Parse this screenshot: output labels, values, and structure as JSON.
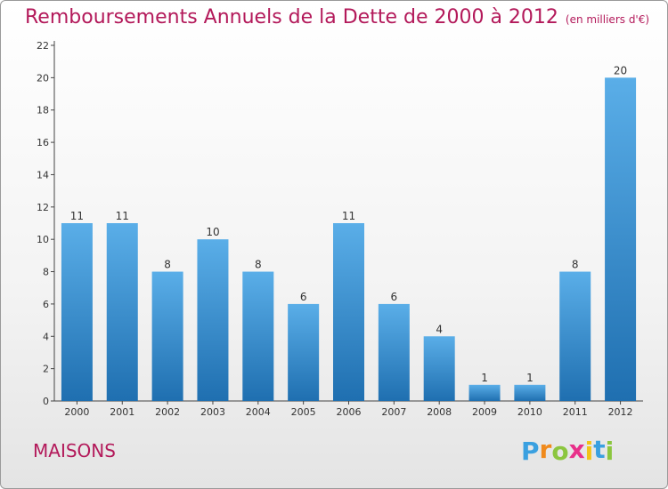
{
  "page": {
    "title": "Remboursements Annuels de la Dette de 2000 à 2012",
    "unit": "(en milliers d'€)",
    "location": "MAISONS",
    "logo": {
      "letters": [
        "P",
        "r",
        "o",
        "x",
        "i",
        "t",
        "i"
      ],
      "colors": [
        "#3aa0e0",
        "#f08a1c",
        "#8cc63f",
        "#e8308a",
        "#f2c318",
        "#3aa0e0",
        "#8cc63f"
      ]
    }
  },
  "chart_data": {
    "type": "bar",
    "categories": [
      "2000",
      "2001",
      "2002",
      "2003",
      "2004",
      "2005",
      "2006",
      "2007",
      "2008",
      "2009",
      "2010",
      "2011",
      "2012"
    ],
    "values": [
      11,
      11,
      8,
      10,
      8,
      6,
      11,
      6,
      4,
      1,
      1,
      8,
      20
    ],
    "data_labels": [
      "11",
      "11",
      "8",
      "10",
      "8",
      "6",
      "11",
      "6",
      "4",
      "1",
      "1",
      "8",
      "20"
    ],
    "ylim": [
      0,
      22
    ],
    "yticks": [
      0,
      2,
      4,
      6,
      8,
      10,
      12,
      14,
      16,
      18,
      20,
      22
    ],
    "grid": false,
    "bar_color_top": "#5aaee8",
    "bar_color_bottom": "#1f6fb0"
  }
}
